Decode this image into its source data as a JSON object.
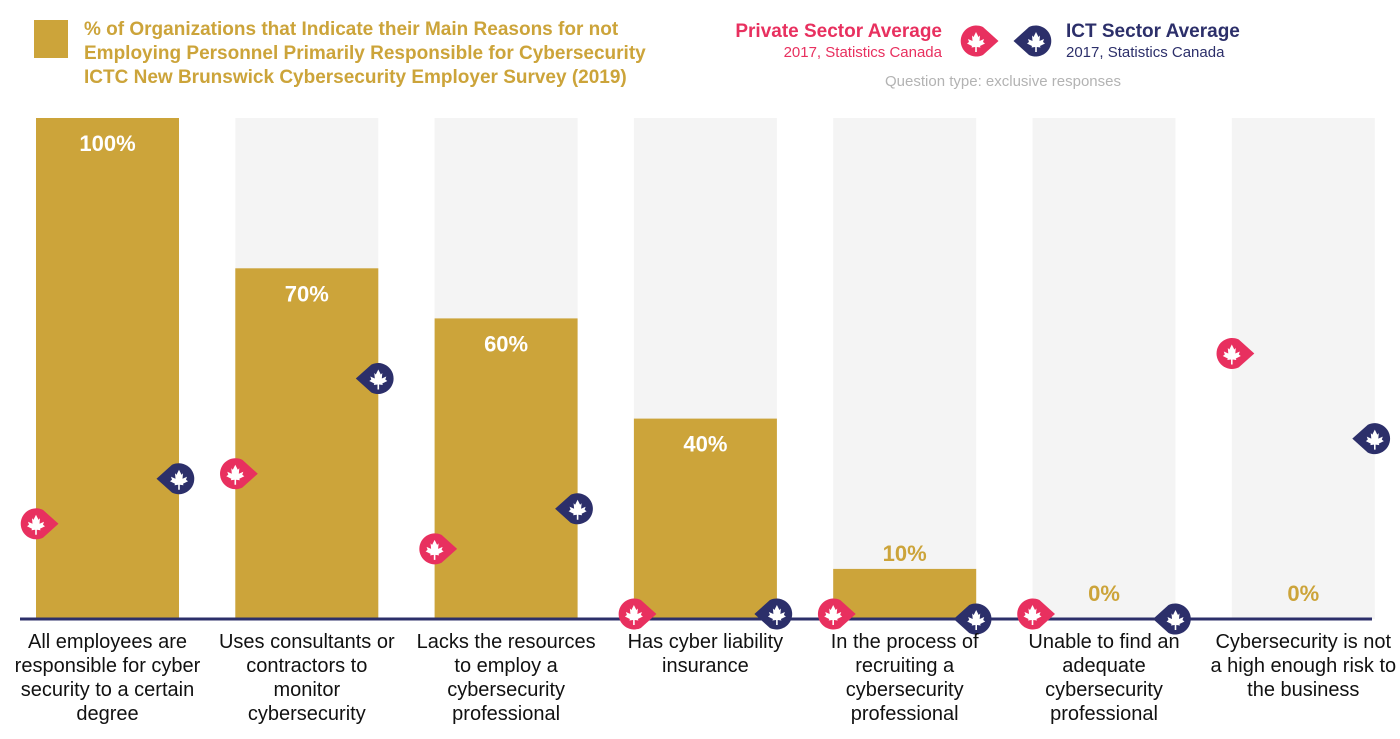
{
  "legend": {
    "swatch_color": "#cca43a",
    "title": "% of Organizations that Indicate their Main Reasons for not Employing Personnel Primarily Responsible for Cybersecurity ICTC New Brunswick Cybersecurity Employer Survey (2019)",
    "private": {
      "label": "Private Sector Average",
      "source": "2017, Statistics Canada",
      "color": "#e8305f",
      "icon": "maple-leaf-icon"
    },
    "ict": {
      "label": "ICT Sector Average",
      "source": "2017, Statistics Canada",
      "color": "#2c2f6a",
      "icon": "maple-leaf-icon"
    },
    "question_type": "Question type: exclusive responses"
  },
  "chart_data": {
    "type": "bar",
    "title": "% of Organizations that Indicate their Main Reasons for not Employing Personnel Primarily Responsible for Cybersecurity ICTC New Brunswick Cybersecurity Employer Survey (2019)",
    "ylim": [
      0,
      100
    ],
    "categories": [
      "All employees are responsible for cyber security to a certain degree",
      "Uses consultants or contractors to monitor cybersecurity",
      "Lacks the resources to employ a cybersecurity professional",
      "Has cyber liability insurance",
      "In the process of recruiting a cybersecurity professional",
      "Unable to find an adequate cybersecurity professional",
      "Cybersecurity is not a high enough risk to the business"
    ],
    "values": [
      100,
      70,
      60,
      40,
      10,
      0,
      0
    ],
    "value_labels": [
      "100%",
      "70%",
      "60%",
      "40%",
      "10%",
      "0%",
      "0%"
    ],
    "series": [
      {
        "name": "ICTC New Brunswick Cybersecurity Employer Survey (2019)",
        "values": [
          100,
          70,
          60,
          40,
          10,
          0,
          0
        ]
      },
      {
        "name": "Private Sector Average",
        "values": [
          19,
          29,
          14,
          1,
          1,
          1,
          53
        ]
      },
      {
        "name": "ICT Sector Average",
        "values": [
          28,
          48,
          22,
          1,
          0,
          0,
          36
        ]
      }
    ],
    "colors": {
      "bar": "#cca43a",
      "background_bar": "#f4f4f4",
      "axis": "#2c2f6a",
      "bar_label_inside": "#ffffff",
      "bar_label_outside": "#cca43a"
    }
  }
}
